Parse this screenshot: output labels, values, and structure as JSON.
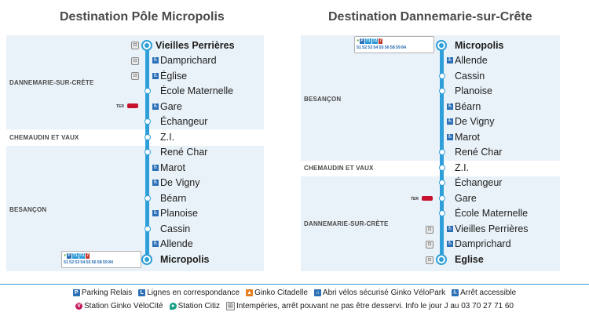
{
  "left": {
    "title": "Destination Pôle Micropolis",
    "zones": [
      "DANNEMARIE-SUR-CRÈTE",
      "CHEMAUDIN ET VAUX",
      "BESANÇON"
    ],
    "stops": [
      "Vieilles Perrières",
      "Damprichard",
      "Église",
      "École Maternelle",
      "Gare",
      "Échangeur",
      "Z.I.",
      "René Char",
      "Marot",
      "De Vigny",
      "Béarn",
      "Planoise",
      "Cassin",
      "Allende",
      "Micropolis"
    ],
    "ter_label": "TER"
  },
  "right": {
    "title": "Destination Dannemarie-sur-Crête",
    "zones": [
      "BESANÇON",
      "CHEMAUDIN ET VAUX",
      "DANNEMARIE-SUR-CRÈTE"
    ],
    "stops": [
      "Micropolis",
      "Allende",
      "Cassin",
      "Planoise",
      "Béarn",
      "De Vigny",
      "Marot",
      "René Char",
      "Z.I.",
      "Échangeur",
      "Gare",
      "École Maternelle",
      "Vieilles Perrières",
      "Damprichard",
      "Eglise"
    ],
    "ter_label": "TER"
  },
  "connections": {
    "top": [
      "T1",
      "T2",
      "7"
    ],
    "lines": [
      "51",
      "52",
      "53",
      "54",
      "55",
      "56",
      "58",
      "59",
      "84"
    ]
  },
  "legend": {
    "row1": [
      "Parking Relais",
      "Lignes en correspondance",
      "Ginko Citadelle",
      "Abri vélos sécurisé Ginko VéloPark",
      "Arrêt accessible"
    ],
    "row2": [
      "Station Ginko VéloCité",
      "Station Citiz",
      "Intempéries, arrêt pouvant ne pas être desservi. Info le jour J au 03 70 27 71 60"
    ]
  },
  "colors": {
    "line": "#2e9fd8",
    "zone_bg": "#eaf2f9",
    "accessible": "#2b6fb6",
    "sncf": "#c8102e",
    "T1": "#2b9ad6",
    "T2": "#2b9ad6",
    "L7": "#c0392b"
  }
}
